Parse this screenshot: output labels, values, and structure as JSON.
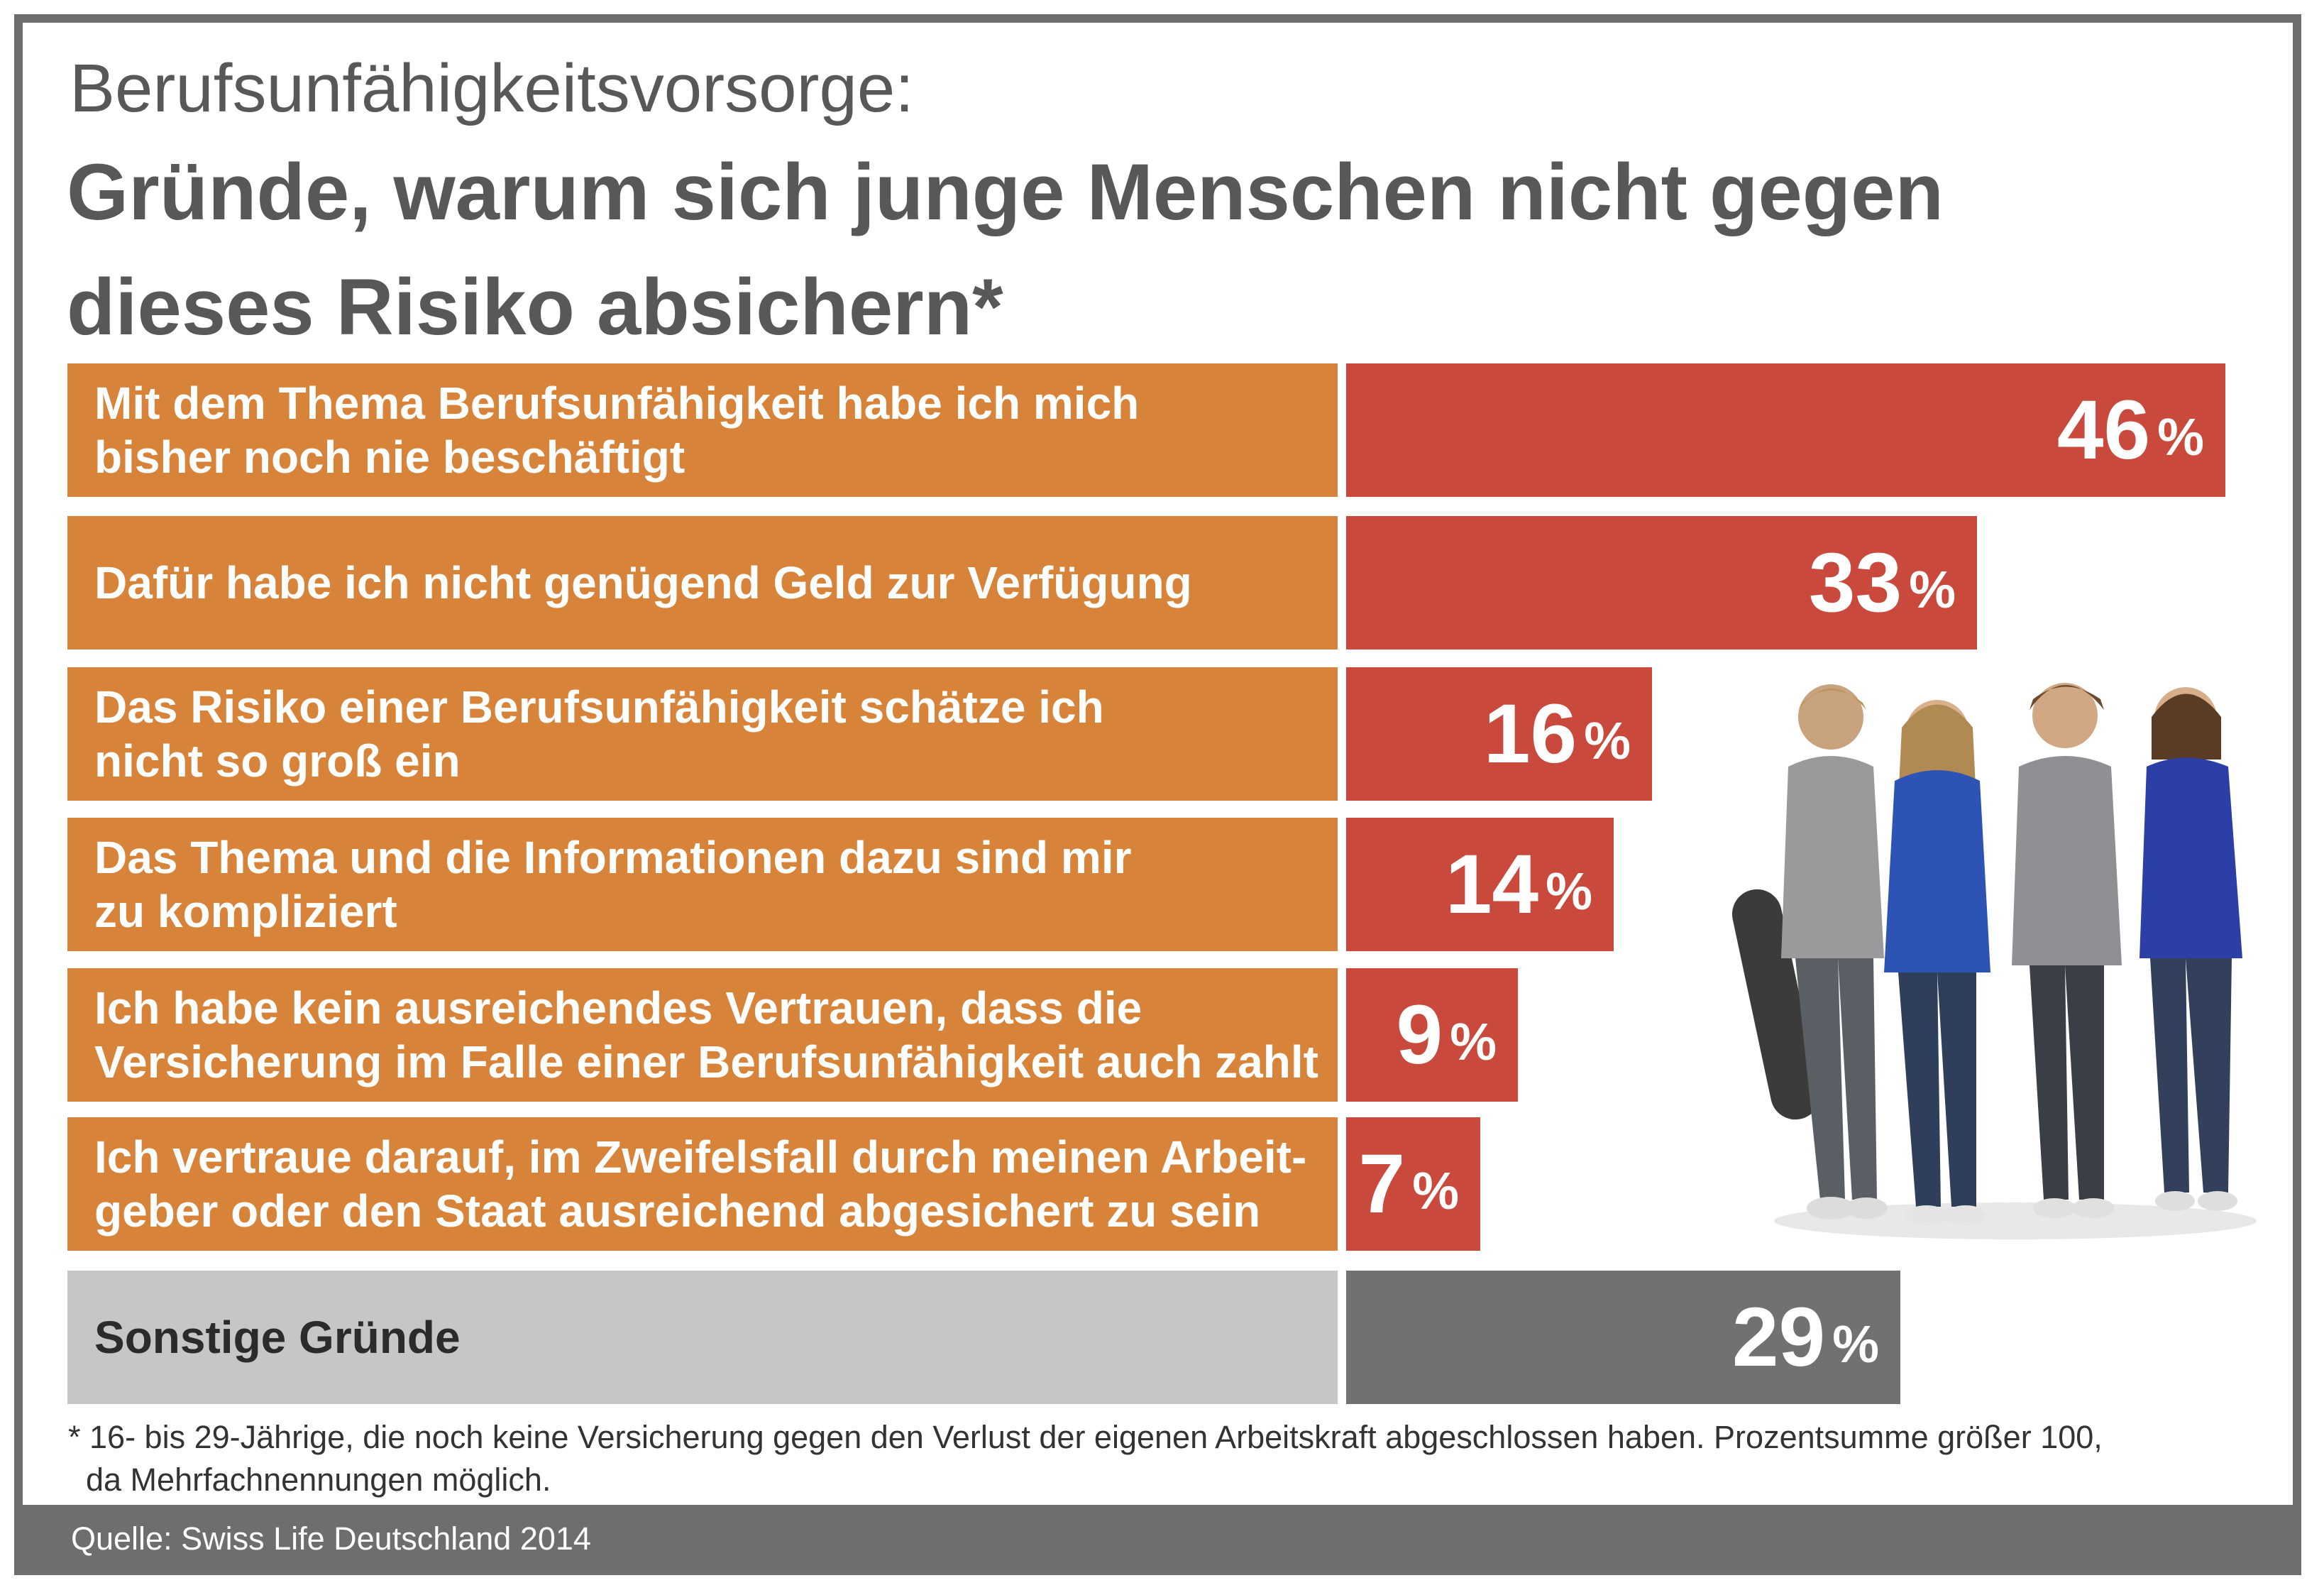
{
  "header": {
    "subtitle": "Berufsunfähigkeitsvorsorge:",
    "title": "Gründe, warum sich junge Menschen nicht gegen dieses Risiko absichern*"
  },
  "chart_data": {
    "type": "bar",
    "orientation": "horizontal",
    "categories": [
      "Mit dem Thema Berufsunfähigkeit habe ich mich bisher noch nie beschäftigt",
      "Dafür habe ich nicht genügend Geld zur Verfügung",
      "Das Risiko einer Berufsunfähigkeit schätze ich nicht so groß ein",
      "Das Thema und die Informationen dazu sind mir zu kompliziert",
      "Ich habe kein ausreichendes Vertrauen, dass die Versicherung im Falle einer Berufsunfähigkeit auch zahlt",
      "Ich vertraue darauf, im Zweifelsfall durch meinen Arbeitgeber oder den Staat ausreichend abgesichert zu sein",
      "Sonstige Gründe"
    ],
    "values": [
      46,
      33,
      16,
      14,
      9,
      7,
      29
    ],
    "value_labels": [
      "46",
      "33",
      "16",
      "14",
      "9",
      "7",
      "29"
    ],
    "unit": "%",
    "bar_colors": [
      "#c94a3d",
      "#c94a3d",
      "#c94a3d",
      "#c94a3d",
      "#c94a3d",
      "#c94a3d",
      "#717173"
    ],
    "label_colors": [
      "#d78339",
      "#d78339",
      "#d78339",
      "#d78339",
      "#d78339",
      "#d78339",
      "#c5c6c8"
    ],
    "xlim": [
      0,
      46
    ]
  },
  "rows": [
    {
      "label_lines": [
        "Mit dem Thema Berufsunfähigkeit habe ich mich",
        "bisher noch nie beschäftigt"
      ]
    },
    {
      "label_lines": [
        "Dafür habe ich nicht genügend Geld zur Verfügung"
      ]
    },
    {
      "label_lines": [
        "Das Risiko einer Berufsunfähigkeit schätze ich",
        "nicht so groß ein"
      ]
    },
    {
      "label_lines": [
        "Das Thema und die Informationen dazu sind mir",
        "zu kompliziert"
      ]
    },
    {
      "label_lines": [
        "Ich habe kein ausreichendes Vertrauen, dass die",
        "Versicherung im Falle einer Berufsunfähigkeit auch zahlt"
      ]
    },
    {
      "label_lines": [
        "Ich vertraue darauf, im Zweifelsfall durch meinen Arbeit-",
        "geber oder den Staat ausreichend abgesichert zu sein"
      ]
    },
    {
      "label_lines": [
        "Sonstige Gründe"
      ]
    }
  ],
  "footnote": {
    "line1": "* 16- bis 29-Jährige, die noch keine Versicherung gegen den Verlust der eigenen Arbeitskraft abgeschlossen haben. Prozentsumme größer 100,",
    "line2": "  da Mehrfachnennungen möglich."
  },
  "source": "Quelle: Swiss Life Deutschland 2014"
}
